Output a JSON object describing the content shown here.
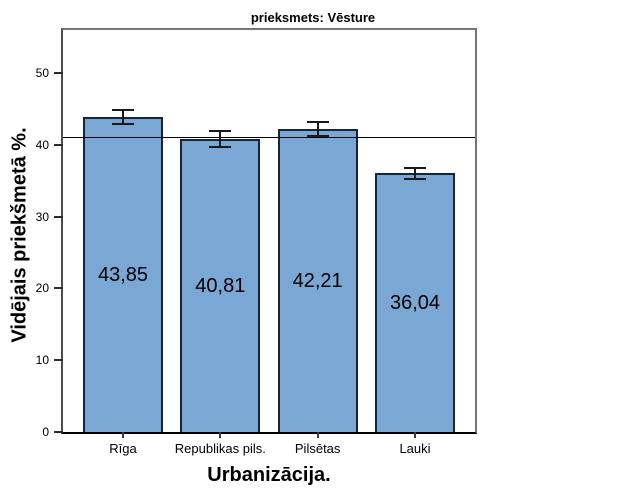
{
  "window": {
    "background": "#ffffff"
  },
  "chart_data": {
    "type": "bar",
    "title": "prieksmets: Vēsture",
    "xlabel": "Urbanizācija.",
    "ylabel": "Vidējais priekšmetā %.",
    "categories": [
      "Rīga",
      "Republikas pils.",
      "Pilsētas",
      "Lauki"
    ],
    "values": [
      43.85,
      40.81,
      42.21,
      36.04
    ],
    "value_labels": [
      "43,85",
      "40,81",
      "42,21",
      "36,04"
    ],
    "errors": [
      0.95,
      1.1,
      1.0,
      0.75
    ],
    "error_bar_style": "capped whiskers centered on bar top",
    "yticks": [
      0,
      10,
      20,
      30,
      40,
      50
    ],
    "ytick_labels": [
      "0",
      "10",
      "20",
      "30",
      "40",
      "50"
    ],
    "ylim": [
      0,
      56
    ],
    "reference_line_value": 41.0,
    "grid": "off",
    "legend": "none",
    "colors": {
      "bar_fill": "#7BA7D4",
      "bar_border": "#16243c",
      "error_bar": "#1a1a1a",
      "reference_line": "#000000",
      "frame": "#757575",
      "baseline": "#000000",
      "text": "#000000"
    }
  }
}
